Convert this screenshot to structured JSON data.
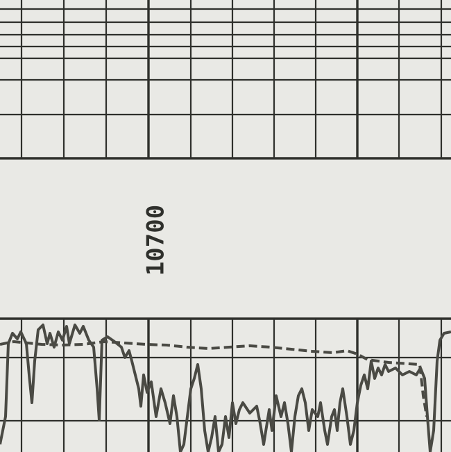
{
  "depth_label": "10700"
}
